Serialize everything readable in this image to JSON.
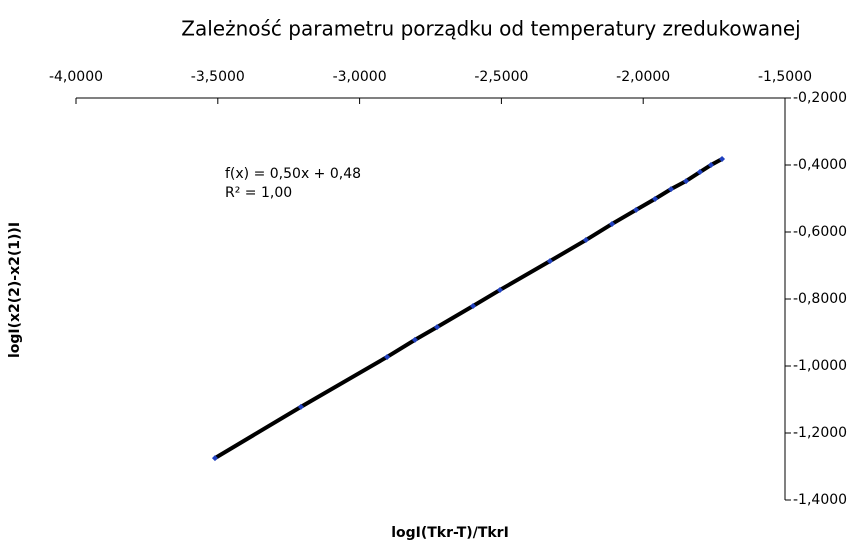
{
  "chart_data": {
    "type": "scatter",
    "title": "Zależność parametru porządku od temperatury zredukowanej",
    "x_label": "logI(Tkr-T)/TkrI",
    "y_label": "logI(x2(2)-x2(1))I",
    "annotations": [
      "f(x) = 0,50x + 0,48",
      "R² = 1,00"
    ],
    "xlim": [
      -4,
      -1.5
    ],
    "xticks": [
      {
        "value": -4,
        "label": "-4,0000"
      },
      {
        "value": -3.5,
        "label": "-3,5000"
      },
      {
        "value": -3,
        "label": "-3,0000"
      },
      {
        "value": -2.5,
        "label": "-2,5000"
      },
      {
        "value": -2,
        "label": "-2,0000"
      },
      {
        "value": -1.5,
        "label": "-1,5000"
      }
    ],
    "ylim": [
      -0.2,
      -1.4
    ],
    "yticks": [
      {
        "value": -0.2,
        "label": "-0,2000"
      },
      {
        "value": -0.4,
        "label": "-0,4000"
      },
      {
        "value": -0.6,
        "label": "-0,6000"
      },
      {
        "value": -0.8,
        "label": "-0,8000"
      },
      {
        "value": -1,
        "label": "-1,0000"
      },
      {
        "value": -1.2,
        "label": "-1,2000"
      },
      {
        "value": -1.4,
        "label": "-1,4000"
      }
    ],
    "series": [
      {
        "color": "#1f3fbf",
        "x": [
          -3.51,
          -3.207,
          -2.903,
          -2.805,
          -2.727,
          -2.6,
          -2.505,
          -2.329,
          -2.202,
          -2.11,
          -2.025,
          -1.958,
          -1.902,
          -1.849,
          -1.8,
          -1.761,
          -1.722
        ],
        "values": [
          -1.275,
          -1.122,
          -0.973,
          -0.922,
          -0.884,
          -0.821,
          -0.773,
          -0.687,
          -0.624,
          -0.576,
          -0.534,
          -0.501,
          -0.472,
          -0.448,
          -0.421,
          -0.4,
          -0.382
        ]
      }
    ]
  }
}
